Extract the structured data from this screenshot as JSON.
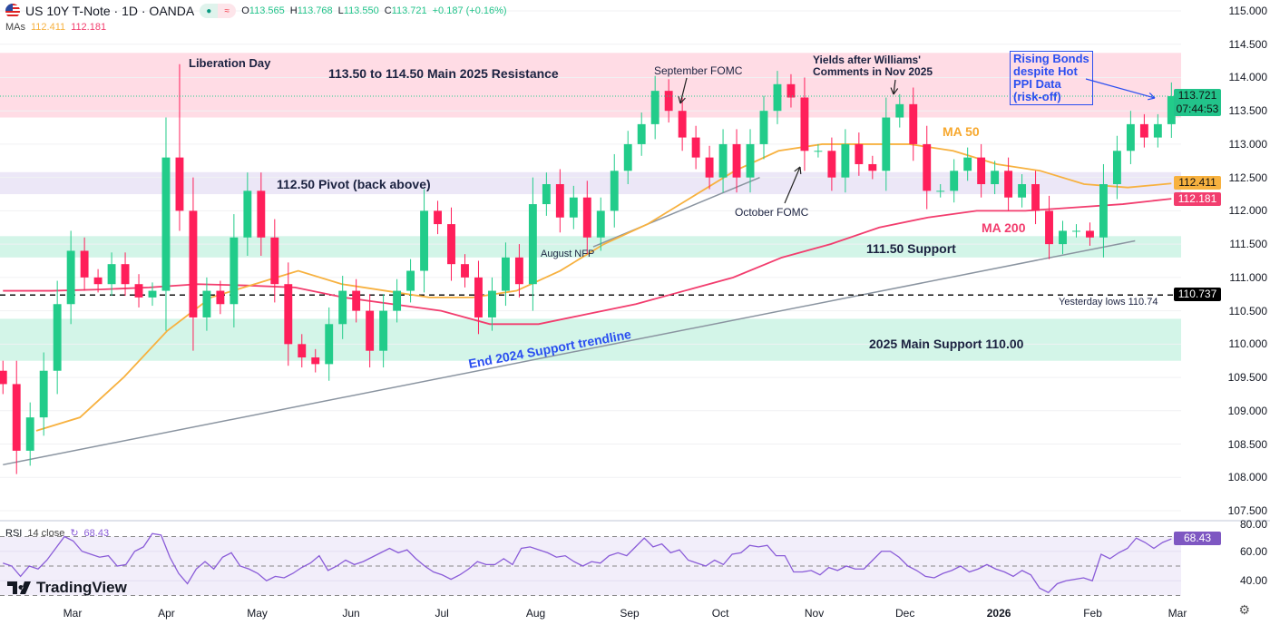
{
  "header": {
    "symbol": "US 10Y T-Note · 1D · OANDA",
    "o_label": "O",
    "o": "113.565",
    "h_label": "H",
    "h": "113.768",
    "l_label": "L",
    "l": "113.550",
    "c_label": "C",
    "c": "113.721",
    "change": "+0.187 (+0.16%)",
    "mas_label": "MAs",
    "ma50": "112.411",
    "ma200": "112.181",
    "pill_icons": [
      "market-open-dot",
      "delayed-data-icon"
    ]
  },
  "colors": {
    "up": "#22cc8a",
    "down": "#ff1f5a",
    "ma50": "#f7b13f",
    "ma200": "#f23d6e",
    "rsi": "#8a5cd8",
    "resistance_zone": "#ffdce5",
    "pivot_zone": "#ece7f7",
    "support_zone": "#d3f5e8",
    "trend": "#8a94a0",
    "annotation_blue": "#2b4ff0"
  },
  "chart_data": {
    "type": "candlestick",
    "x_range": [
      "2025-02-06",
      "2026-02-27"
    ],
    "ylim": [
      107.5,
      115.0
    ],
    "y_ticks": [
      "115.000",
      "114.500",
      "114.000",
      "113.500",
      "113.000",
      "112.500",
      "112.000",
      "111.500",
      "111.000",
      "110.500",
      "110.000",
      "109.500",
      "109.000",
      "108.500",
      "108.000",
      "107.500"
    ],
    "x_ticks": [
      {
        "label": "Mar",
        "date": "2025-03-01"
      },
      {
        "label": "Apr",
        "date": "2025-04-01"
      },
      {
        "label": "May",
        "date": "2025-05-01"
      },
      {
        "label": "Jun",
        "date": "2025-06-01"
      },
      {
        "label": "Jul",
        "date": "2025-07-01"
      },
      {
        "label": "Aug",
        "date": "2025-08-01"
      },
      {
        "label": "Sep",
        "date": "2025-09-01"
      },
      {
        "label": "Oct",
        "date": "2025-10-01"
      },
      {
        "label": "Nov",
        "date": "2025-11-01"
      },
      {
        "label": "Dec",
        "date": "2025-12-01"
      },
      {
        "label": "2026",
        "date": "2026-01-01",
        "bold": true
      },
      {
        "label": "Feb",
        "date": "2026-02-01"
      },
      {
        "label": "Mar",
        "date": "2026-03-01"
      }
    ],
    "closes": [
      109.4,
      108.4,
      108.9,
      109.6,
      110.6,
      111.4,
      111.0,
      110.9,
      111.2,
      110.9,
      110.7,
      110.8,
      112.8,
      112.0,
      110.4,
      110.8,
      110.6,
      111.6,
      112.3,
      111.6,
      110.9,
      110.0,
      109.8,
      109.7,
      110.3,
      110.8,
      110.5,
      109.9,
      110.5,
      110.8,
      111.1,
      112.0,
      111.8,
      111.2,
      111.0,
      110.4,
      110.8,
      111.3,
      110.9,
      112.1,
      112.4,
      111.9,
      112.2,
      111.6,
      112.0,
      112.6,
      113.0,
      113.3,
      113.8,
      113.5,
      113.1,
      112.8,
      112.5,
      113.0,
      112.5,
      113.0,
      113.5,
      113.9,
      113.7,
      112.9,
      112.9,
      112.5,
      113.0,
      112.7,
      112.6,
      113.4,
      113.6,
      113.0,
      112.3,
      112.3,
      112.6,
      112.8,
      112.4,
      112.6,
      112.2,
      112.4,
      112.0,
      111.5,
      111.7,
      111.7,
      111.6,
      112.4,
      112.9,
      113.3,
      113.1,
      113.3,
      113.721
    ],
    "liberation_day_high": 114.2,
    "ma50": [
      108.7,
      108.9,
      109.5,
      110.2,
      110.7,
      110.9,
      111.1,
      110.9,
      110.8,
      110.7,
      110.7,
      110.8,
      111.1,
      111.5,
      111.8,
      112.2,
      112.6,
      112.9,
      113.0,
      113.0,
      113.0,
      112.9,
      112.7,
      112.6,
      112.4,
      112.35,
      112.41
    ],
    "ma200": [
      110.8,
      110.8,
      110.82,
      110.85,
      110.9,
      110.88,
      110.85,
      110.7,
      110.6,
      110.5,
      110.3,
      110.3,
      110.45,
      110.6,
      110.8,
      111.0,
      111.3,
      111.5,
      111.75,
      111.9,
      112.0,
      112.0,
      112.05,
      112.1,
      112.181
    ],
    "rsi": {
      "label": "RSI",
      "params": "14 close",
      "value": "68.43",
      "ylim": [
        25,
        85
      ],
      "ticks": [
        "80.00",
        "60.00",
        "40.00"
      ],
      "bands": [
        70,
        50,
        30
      ],
      "values": [
        52,
        50,
        43,
        50,
        48,
        54,
        62,
        70,
        67,
        60,
        58,
        56,
        57,
        50,
        51,
        60,
        63,
        72,
        71,
        56,
        45,
        38,
        48,
        53,
        48,
        56,
        59,
        50,
        48,
        45,
        40,
        43,
        42,
        45,
        49,
        52,
        57,
        47,
        50,
        54,
        51,
        53,
        56,
        59,
        62,
        59,
        61,
        55,
        50,
        46,
        44,
        41,
        44,
        48,
        53,
        51,
        51,
        55,
        51,
        62,
        63,
        61,
        59,
        56,
        57,
        53,
        50,
        53,
        52,
        57,
        59,
        57,
        63,
        69,
        63,
        65,
        59,
        61,
        54,
        52,
        50,
        54,
        51,
        58,
        59,
        64,
        63,
        64,
        57,
        57,
        46,
        46,
        47,
        44,
        49,
        47,
        50,
        48,
        48,
        54,
        60,
        60,
        56,
        50,
        47,
        43,
        42,
        45,
        47,
        50,
        46,
        48,
        51,
        48,
        46,
        43,
        47,
        44,
        35,
        32,
        38,
        40,
        41,
        42,
        40,
        58,
        55,
        59,
        62,
        69,
        66,
        62,
        66,
        68.43
      ]
    },
    "zones": [
      {
        "name": "resistance",
        "range": [
          113.4,
          114.37
        ]
      },
      {
        "name": "pivot",
        "range": [
          112.25,
          112.58
        ]
      },
      {
        "name": "support",
        "range": [
          111.3,
          111.62
        ]
      },
      {
        "name": "main-support",
        "range": [
          109.75,
          110.38
        ]
      }
    ],
    "yesterday_low": 110.737,
    "trendlines": [
      {
        "name": "end-2024-support",
        "from": [
          "2025-02-06",
          108.19
        ],
        "to": [
          "2026-02-15",
          111.55
        ]
      },
      {
        "name": "aug-oct-trend",
        "from": [
          "2025-08-20",
          111.46
        ],
        "to": [
          "2025-10-14",
          112.5
        ]
      }
    ],
    "price_tags": {
      "last": "113.721",
      "countdown": "07:44:53",
      "ma50": "112.411",
      "ma200": "112.181",
      "yesterday_low": "110.737",
      "rsi": "68.43"
    }
  },
  "annotations": {
    "liberation": "Liberation Day",
    "resistance": "113.50 to 114.50 Main 2025 Resistance",
    "sep_fomc": "September FOMC",
    "williams_1": "Yields after Williams'",
    "williams_2": "Comments in Nov 2025",
    "rising_bonds": [
      "Rising Bonds",
      "despite Hot",
      "PPI Data",
      "(risk-off)"
    ],
    "ma50": "MA 50",
    "pivot": "112.50 Pivot (back above)",
    "oct_fomc": "October FOMC",
    "ma200": "MA 200",
    "aug_nfp": "August NFP",
    "support": "111.50 Support",
    "yesterday": "Yesterday lows 110.74",
    "main_support": "2025 Main Support 110.00",
    "trendline": "End 2024 Support trendline"
  },
  "branding": {
    "logo": "TradingView"
  }
}
